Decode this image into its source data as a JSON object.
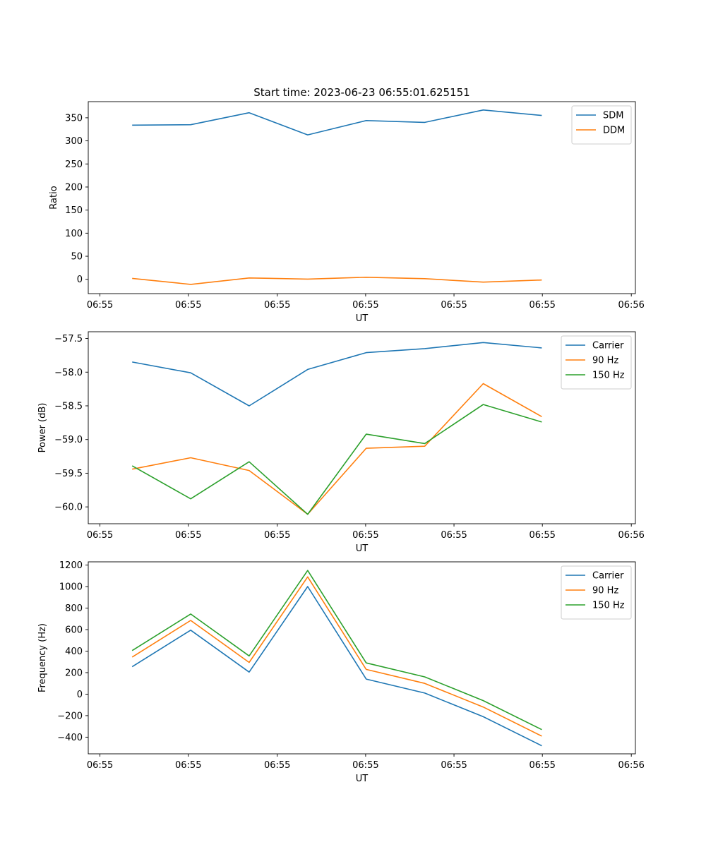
{
  "figure": {
    "title": "Start time: 2023-06-23 06:55:01.625151"
  },
  "colors": {
    "blue": "#1f77b4",
    "orange": "#ff7f0e",
    "green": "#2ca02c"
  },
  "chart_data": [
    {
      "type": "line",
      "title": "Start time: 2023-06-23 06:55:01.625151",
      "xlabel": "UT",
      "ylabel": "Ratio",
      "x": [
        0,
        1,
        2,
        3,
        4,
        5,
        6,
        7
      ],
      "xlim": [
        -0.75,
        8.6
      ],
      "ylim": [
        -31,
        385
      ],
      "xticks": [
        -0.55,
        0.96,
        2.48,
        3.99,
        5.5,
        7.01,
        8.53
      ],
      "xtick_labels": [
        "06:55",
        "06:55",
        "06:55",
        "06:55",
        "06:55",
        "06:55",
        "06:56"
      ],
      "yticks": [
        0,
        50,
        100,
        150,
        200,
        250,
        300,
        350
      ],
      "ytick_labels": [
        "0",
        "50",
        "100",
        "150",
        "200",
        "250",
        "300",
        "350"
      ],
      "legend": "top-right",
      "grid": false,
      "series": [
        {
          "name": "SDM",
          "color": "#1f77b4",
          "values": [
            334,
            335,
            361,
            313,
            344,
            340,
            367,
            355
          ]
        },
        {
          "name": "DDM",
          "color": "#ff7f0e",
          "values": [
            2,
            -11,
            3,
            0.5,
            4.5,
            1.5,
            -6,
            -1.5
          ]
        }
      ]
    },
    {
      "type": "line",
      "title": "",
      "xlabel": "UT",
      "ylabel": "Power (dB)",
      "x": [
        0,
        1,
        2,
        3,
        4,
        5,
        6,
        7
      ],
      "xlim": [
        -0.75,
        8.6
      ],
      "ylim": [
        -60.25,
        -57.4
      ],
      "xticks": [
        -0.55,
        0.96,
        2.48,
        3.99,
        5.5,
        7.01,
        8.53
      ],
      "xtick_labels": [
        "06:55",
        "06:55",
        "06:55",
        "06:55",
        "06:55",
        "06:55",
        "06:56"
      ],
      "yticks": [
        -60.0,
        -59.5,
        -59.0,
        -58.5,
        -58.0,
        -57.5
      ],
      "ytick_labels": [
        "−60.0",
        "−59.5",
        "−59.0",
        "−58.5",
        "−58.0",
        "−57.5"
      ],
      "legend": "top-right",
      "grid": false,
      "series": [
        {
          "name": "Carrier",
          "color": "#1f77b4",
          "values": [
            -57.85,
            -58.01,
            -58.5,
            -57.96,
            -57.71,
            -57.65,
            -57.56,
            -57.64
          ]
        },
        {
          "name": "90 Hz",
          "color": "#ff7f0e",
          "values": [
            -59.44,
            -59.27,
            -59.46,
            -60.11,
            -59.13,
            -59.1,
            -58.17,
            -58.66
          ]
        },
        {
          "name": "150 Hz",
          "color": "#2ca02c",
          "values": [
            -59.39,
            -59.88,
            -59.33,
            -60.11,
            -58.92,
            -59.06,
            -58.48,
            -58.74
          ]
        }
      ]
    },
    {
      "type": "line",
      "title": "",
      "xlabel": "UT",
      "ylabel": "Frequency (Hz)",
      "x": [
        0,
        1,
        2,
        3,
        4,
        5,
        6,
        7
      ],
      "xlim": [
        -0.75,
        8.6
      ],
      "ylim": [
        -555,
        1230
      ],
      "xticks": [
        -0.55,
        0.96,
        2.48,
        3.99,
        5.5,
        7.01,
        8.53
      ],
      "xtick_labels": [
        "06:55",
        "06:55",
        "06:55",
        "06:55",
        "06:55",
        "06:55",
        "06:56"
      ],
      "yticks": [
        -400,
        -200,
        0,
        200,
        400,
        600,
        800,
        1000,
        1200
      ],
      "ytick_labels": [
        "−400",
        "−200",
        "0",
        "200",
        "400",
        "600",
        "800",
        "1000",
        "1200"
      ],
      "legend": "top-right",
      "grid": false,
      "series": [
        {
          "name": "Carrier",
          "color": "#1f77b4",
          "values": [
            255,
            595,
            205,
            1000,
            140,
            10,
            -210,
            -480
          ]
        },
        {
          "name": "90 Hz",
          "color": "#ff7f0e",
          "values": [
            345,
            685,
            295,
            1090,
            230,
            100,
            -120,
            -390
          ]
        },
        {
          "name": "150 Hz",
          "color": "#2ca02c",
          "values": [
            405,
            745,
            355,
            1150,
            290,
            160,
            -60,
            -330
          ]
        }
      ]
    }
  ]
}
